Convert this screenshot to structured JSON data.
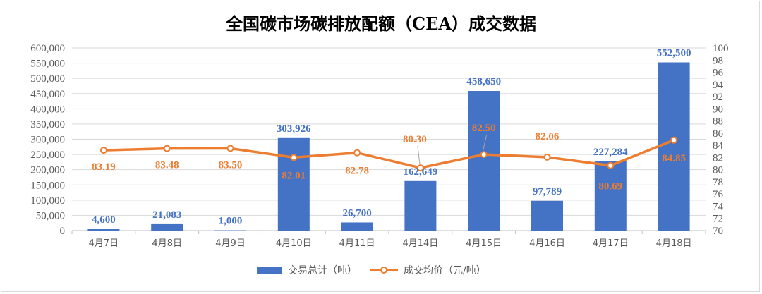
{
  "chart_data": {
    "type": "bar",
    "title": "全国碳市场碳排放配额（CEA）成交数据",
    "categories": [
      "4月7日",
      "4月8日",
      "4月9日",
      "4月10日",
      "4月11日",
      "4月14日",
      "4月15日",
      "4月16日",
      "4月17日",
      "4月18日"
    ],
    "series": [
      {
        "name": "交易总计（吨）",
        "type": "bar",
        "axis": "left",
        "color": "#4472C4",
        "values": [
          4600,
          21083,
          1000,
          303926,
          26700,
          162649,
          458650,
          97789,
          227284,
          552500
        ],
        "labels": [
          "4,600",
          "21,083",
          "1,000",
          "303,926",
          "26,700",
          "162,649",
          "458,650",
          "97,789",
          "227,284",
          "552,500"
        ]
      },
      {
        "name": "成交均价（元/吨）",
        "type": "line",
        "axis": "right",
        "color": "#ED7D31",
        "values": [
          83.19,
          83.48,
          83.5,
          82.01,
          82.78,
          80.3,
          82.5,
          82.06,
          80.69,
          84.85
        ],
        "labels": [
          "83.19",
          "83.48",
          "83.50",
          "82.01",
          "82.78",
          "80.30",
          "82.50",
          "82.06",
          "80.69",
          "84.85"
        ]
      }
    ],
    "left_axis": {
      "ylim": [
        0,
        600000
      ],
      "ticks": [
        "0",
        "50,000",
        "100,000",
        "150,000",
        "200,000",
        "250,000",
        "300,000",
        "350,000",
        "400,000",
        "450,000",
        "500,000",
        "550,000",
        "600,000"
      ]
    },
    "right_axis": {
      "ylim": [
        70,
        100
      ],
      "ticks": [
        "70",
        "72",
        "74",
        "76",
        "78",
        "80",
        "82",
        "84",
        "86",
        "88",
        "90",
        "92",
        "94",
        "96",
        "98",
        "100"
      ]
    },
    "grid": true,
    "legend_position": "bottom"
  }
}
